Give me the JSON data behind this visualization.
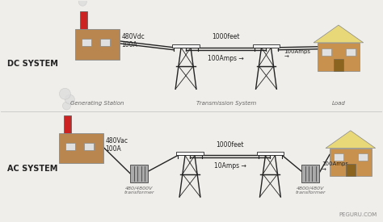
{
  "bg_color": "#f0eeea",
  "dc_label": "DC SYSTEM",
  "ac_label": "AC SYSTEM",
  "dc_voltage": "480Vdc\n100A",
  "ac_voltage": "480Vac\n100A",
  "dc_current_mid": "100Amps →",
  "dc_current_end": "100Amps\n→",
  "ac_current_mid": "10Amps →",
  "ac_current_end": "100Amps\n→",
  "dc_distance": "1000feet",
  "ac_distance": "1000feet",
  "gen_label": "Generating Station",
  "trans_label": "Transmission System",
  "load_label": "Load",
  "ac_trans1_label": "480/4800V\ntransformer",
  "ac_trans2_label": "4800/480V\ntransformer",
  "watermark": "PEGURU.COM",
  "factory_color": "#b8864e",
  "chimney_color": "#cc2222",
  "house_wall_color": "#c8924e",
  "house_roof_color": "#e8d878",
  "wire_color": "#222222",
  "tower_color": "#222222",
  "transformer_color": "#aaaaaa",
  "smoke_color": "#dddddd",
  "window_color": "#e0e0e0",
  "text_color": "#222222",
  "label_color": "#666666"
}
